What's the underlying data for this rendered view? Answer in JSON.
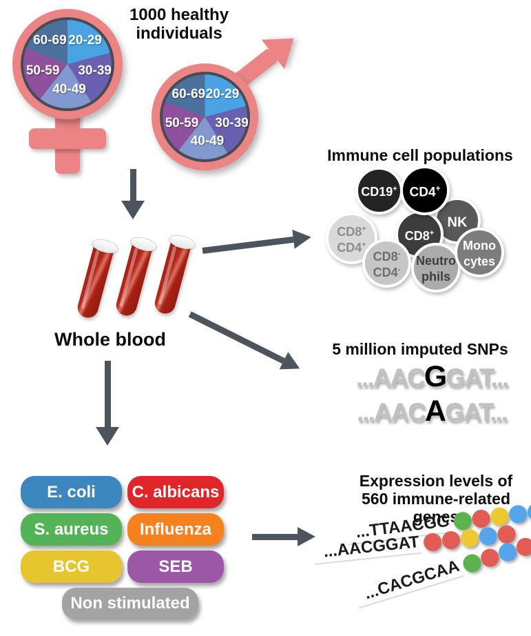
{
  "cohort": {
    "heading_line1": "1000 healthy",
    "heading_line2": "individuals",
    "symbol_color": "#EC8486"
  },
  "age_pie": {
    "type": "pie",
    "border_color": "#474B54",
    "segments": [
      {
        "label": "20-29",
        "color": "#4AA4E4",
        "start": 0,
        "end": 75
      },
      {
        "label": "30-39",
        "color": "#6A60B2",
        "start": 75,
        "end": 148
      },
      {
        "label": "40-49",
        "color": "#8199CE",
        "start": 148,
        "end": 218
      },
      {
        "label": "50-59",
        "color": "#8F519E",
        "start": 218,
        "end": 291
      },
      {
        "label": "60-69",
        "color": "#4C709C",
        "start": 291,
        "end": 360
      }
    ]
  },
  "whole_blood": {
    "label": "Whole blood"
  },
  "arrow_color": "#4D545E",
  "immune_cells": {
    "title": "Immune cell populations",
    "cells": [
      {
        "id": "cd8pos-cd4pos",
        "line1": "CD8",
        "sup1": "+",
        "line2": "CD4",
        "sup2": "+",
        "fill": "#D9D9D9",
        "text": "#8C8C8C"
      },
      {
        "id": "nk",
        "line1": "NK",
        "sup1": "",
        "line2": "",
        "sup2": "",
        "fill": "#585858",
        "text": "#FFFFFF"
      },
      {
        "id": "cd8pos",
        "line1": "CD8",
        "sup1": "+",
        "line2": "",
        "sup2": "",
        "fill": "#3D3D3D",
        "text": "#FFFFFF"
      },
      {
        "id": "cd19pos",
        "line1": "CD19",
        "sup1": "+",
        "line2": "",
        "sup2": "",
        "fill": "#242424",
        "text": "#FFFFFF"
      },
      {
        "id": "cd4pos",
        "line1": "CD4",
        "sup1": "+",
        "line2": "",
        "sup2": "",
        "fill": "#000000",
        "text": "#FFFFFF"
      },
      {
        "id": "cd8neg-cd4neg",
        "line1": "CD8",
        "sup1": "-",
        "line2": "CD4",
        "sup2": "-",
        "fill": "#C6C6C6",
        "text": "#6E6E6E"
      },
      {
        "id": "neutrophils",
        "line1": "Neutro",
        "sup1": "",
        "line2": "phils",
        "sup2": "",
        "fill": "#ABABAB",
        "text": "#3E3E3E"
      },
      {
        "id": "monocytes",
        "line1": "Mono",
        "sup1": "",
        "line2": "cytes",
        "sup2": "",
        "fill": "#7C7C7C",
        "text": "#FFFFFF"
      }
    ]
  },
  "snps": {
    "title": "5 million imputed SNPs",
    "sequences": [
      {
        "prefix": "...AAC",
        "snp": "G",
        "suffix": "GAT..."
      },
      {
        "prefix": "...AAC",
        "snp": "A",
        "suffix": "GAT..."
      }
    ]
  },
  "stimuli": {
    "items": [
      {
        "label": "E. coli",
        "color": "#3D87BF"
      },
      {
        "label": "C. albicans",
        "color": "#E12629"
      },
      {
        "label": "S. aureus",
        "color": "#54B257"
      },
      {
        "label": "Influenza",
        "color": "#F6821F"
      },
      {
        "label": "BCG",
        "color": "#E6C52F"
      },
      {
        "label": "SEB",
        "color": "#9C58A6"
      },
      {
        "label": "Non stimulated",
        "color": "#A5A2A5"
      }
    ]
  },
  "expression": {
    "title_line1": "Expression levels of",
    "title_line2": "560 immune-related genes",
    "dot_colors": {
      "green": "#5BB24E",
      "red": "#E25B55",
      "yellow": "#EEC832",
      "blue": "#55A5EA"
    },
    "rows": [
      {
        "sequence": "...TTAACGG",
        "dots": [
          "green",
          "red",
          "yellow",
          "blue",
          "blue"
        ]
      },
      {
        "sequence": "...AACGGAT",
        "dots": [
          "red",
          "red",
          "yellow",
          "blue",
          "red"
        ]
      },
      {
        "sequence": "...CACGCAA",
        "dots": [
          "green",
          "red",
          "blue",
          "red",
          "red"
        ]
      }
    ]
  }
}
